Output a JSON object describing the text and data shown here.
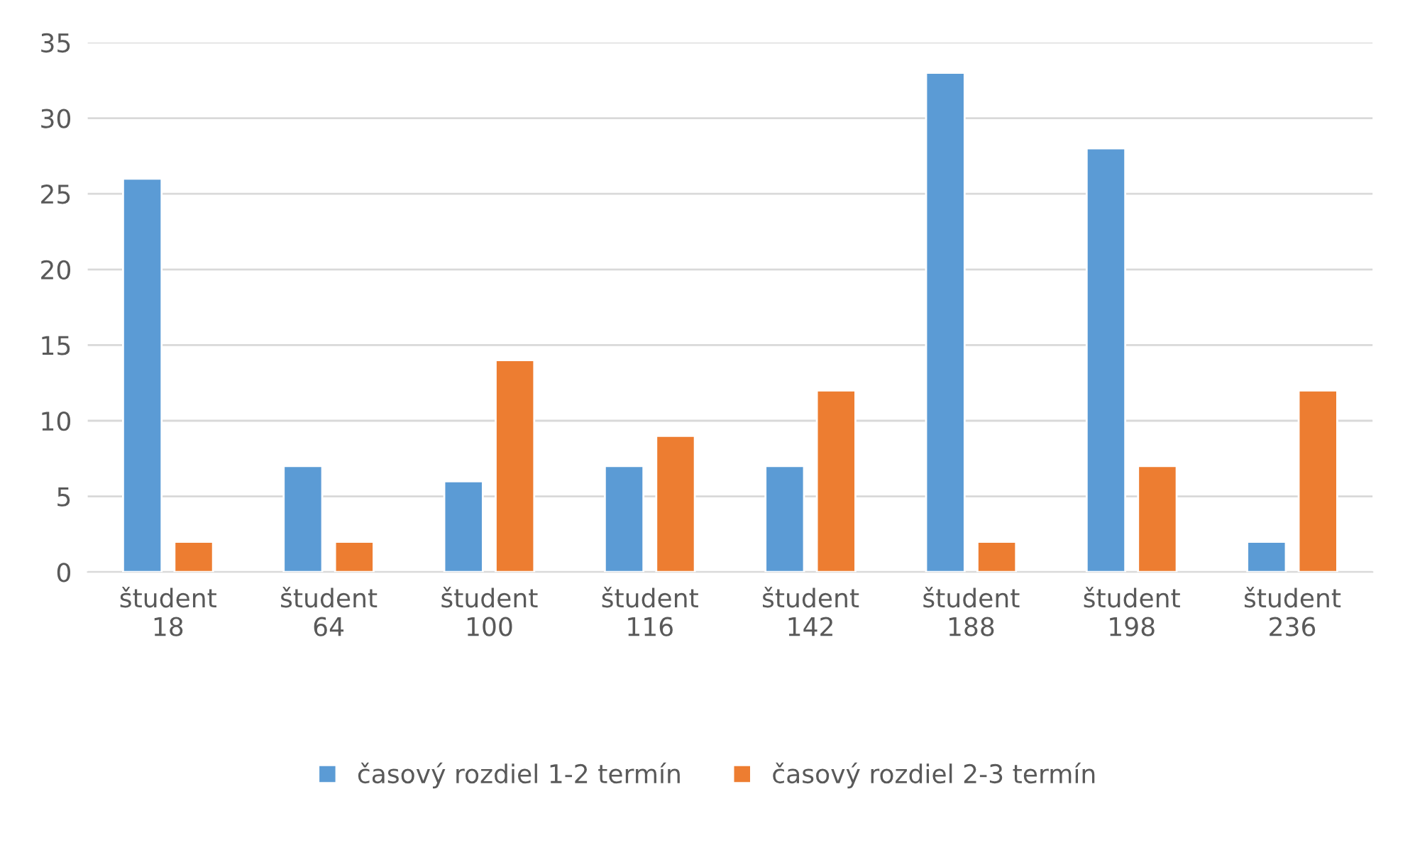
{
  "chart_data": {
    "type": "bar",
    "categories": [
      "študent\n18",
      "študent\n64",
      "študent\n100",
      "študent\n116",
      "študent\n142",
      "študent\n188",
      "študent\n198",
      "študent\n236"
    ],
    "series": [
      {
        "name": "časový rozdiel 1-2 termín",
        "color": "#5b9bd5",
        "values": [
          26,
          7,
          6,
          7,
          7,
          33,
          28,
          2
        ]
      },
      {
        "name": "časový rozdiel 2-3 termín",
        "color": "#ed7d31",
        "values": [
          2,
          2,
          14,
          9,
          12,
          2,
          7,
          12
        ]
      }
    ],
    "ylim": [
      0,
      35
    ],
    "yticks": [
      0,
      5,
      10,
      15,
      20,
      25,
      30,
      35
    ],
    "grid": "y",
    "legend": "bottom"
  }
}
